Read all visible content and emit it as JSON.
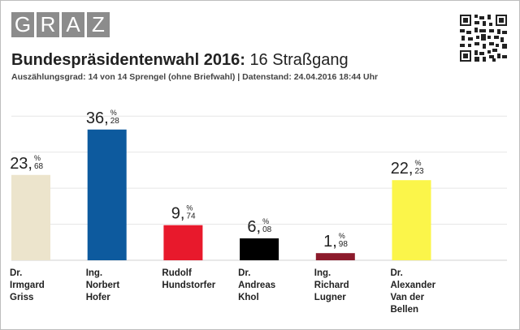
{
  "header": {
    "logo_letters": [
      "G",
      "R",
      "A",
      "Z"
    ],
    "title_bold": "Bundespräsidentenwahl 2016:",
    "title_rest": "16 Straßgang",
    "subtitle": "Auszählungsgrad: 14 von 14 Sprengel (ohne Briefwahl) | Datenstand: 24.04.2016 18:44 Uhr",
    "qr_icon": "qr-code-icon"
  },
  "chart_data": {
    "type": "bar",
    "title": "",
    "xlabel": "",
    "ylabel": "",
    "unit": "%",
    "ylim": [
      0,
      45
    ],
    "grid": true,
    "categories": [
      [
        "Dr.",
        "Irmgard",
        "Griss"
      ],
      [
        "Ing.",
        "Norbert",
        "Hofer"
      ],
      [
        "Rudolf",
        "Hundstorfer"
      ],
      [
        "Dr.",
        "Andreas",
        "Khol"
      ],
      [
        "Ing.",
        "Richard",
        "Lugner"
      ],
      [
        "Dr.",
        "Alexander",
        "Van der",
        "Bellen"
      ]
    ],
    "values": [
      23.68,
      36.28,
      9.74,
      6.08,
      1.98,
      22.23
    ],
    "value_labels": [
      {
        "int": "23,",
        "dec": "68"
      },
      {
        "int": "36,",
        "dec": "28"
      },
      {
        "int": "9,",
        "dec": "74"
      },
      {
        "int": "6,",
        "dec": "08"
      },
      {
        "int": "1,",
        "dec": "98"
      },
      {
        "int": "22,",
        "dec": "23"
      }
    ],
    "colors": [
      "#ece4cc",
      "#0d5a9e",
      "#e8192c",
      "#000000",
      "#8c1a2b",
      "#fbf54a"
    ]
  }
}
